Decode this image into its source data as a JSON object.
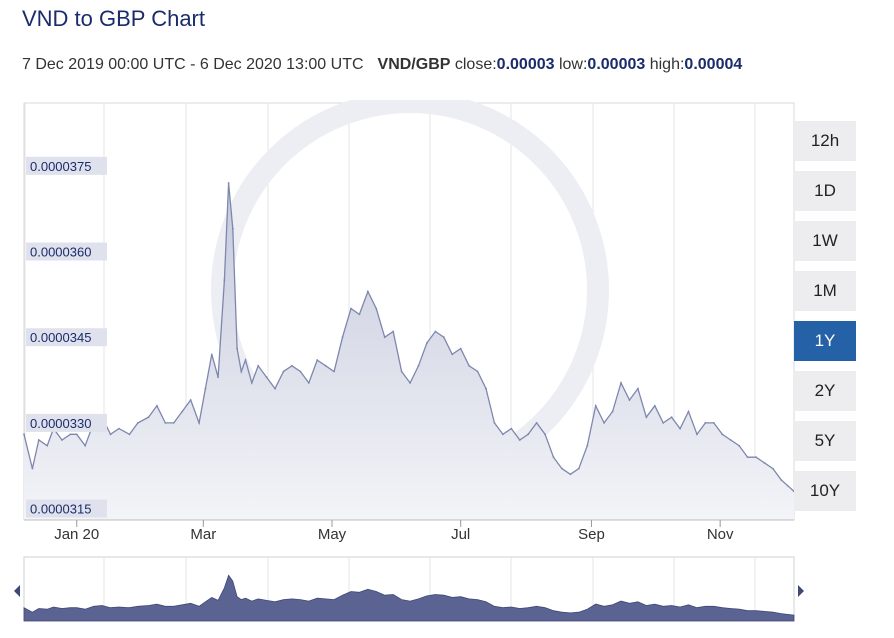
{
  "title": "VND to GBP Chart",
  "subtitle": {
    "range": "7 Dec 2019 00:00 UTC - 6 Dec 2020 13:00 UTC",
    "pair": "VND/GBP",
    "close_label": "close:",
    "close_value": "0.00003",
    "low_label": "low:",
    "low_value": "0.00003",
    "high_label": "high:",
    "high_value": "0.00004"
  },
  "range_buttons": [
    {
      "label": "12h",
      "active": false
    },
    {
      "label": "1D",
      "active": false
    },
    {
      "label": "1W",
      "active": false
    },
    {
      "label": "1M",
      "active": false
    },
    {
      "label": "1Y",
      "active": true
    },
    {
      "label": "2Y",
      "active": false
    },
    {
      "label": "5Y",
      "active": false
    },
    {
      "label": "10Y",
      "active": false
    }
  ],
  "colors": {
    "line": "#7e87ad",
    "fill_top": "#c5c9dc",
    "fill_bottom": "#f3f4f8",
    "label_bg": "#dfe2ec",
    "nav_fill": "#5a6391",
    "active": "#2461a7"
  },
  "chart_data": {
    "type": "area",
    "title": "",
    "xlabel": "",
    "ylabel": "",
    "ylim": [
      3.13e-05,
      3.86e-05
    ],
    "xlim": [
      "2019-12-07",
      "2020-12-06"
    ],
    "y_ticks": [
      "0.0000315",
      "0.0000330",
      "0.0000345",
      "0.0000360",
      "0.0000375"
    ],
    "y_tick_values": [
      3.15e-05,
      3.3e-05,
      3.45e-05,
      3.6e-05,
      3.75e-05
    ],
    "x_ticks": [
      {
        "label": "Jan 20",
        "date": "2020-01-01"
      },
      {
        "label": "Mar",
        "date": "2020-03-01"
      },
      {
        "label": "May",
        "date": "2020-05-01"
      },
      {
        "label": "Jul",
        "date": "2020-07-01"
      },
      {
        "label": "Sep",
        "date": "2020-09-01"
      },
      {
        "label": "Nov",
        "date": "2020-11-01"
      }
    ],
    "grid": true,
    "series": [
      {
        "x": [
          "2019-12-07",
          "2019-12-11",
          "2019-12-14",
          "2019-12-18",
          "2019-12-21",
          "2019-12-25",
          "2019-12-29",
          "2020-01-01",
          "2020-01-05",
          "2020-01-09",
          "2020-01-13",
          "2020-01-17",
          "2020-01-21",
          "2020-01-26",
          "2020-01-30",
          "2020-02-04",
          "2020-02-08",
          "2020-02-12",
          "2020-02-16",
          "2020-02-20",
          "2020-02-24",
          "2020-02-28",
          "2020-03-02",
          "2020-03-05",
          "2020-03-08",
          "2020-03-11",
          "2020-03-13",
          "2020-03-15",
          "2020-03-17",
          "2020-03-19",
          "2020-03-21",
          "2020-03-24",
          "2020-03-27",
          "2020-03-31",
          "2020-04-04",
          "2020-04-08",
          "2020-04-12",
          "2020-04-16",
          "2020-04-20",
          "2020-04-24",
          "2020-04-28",
          "2020-05-02",
          "2020-05-06",
          "2020-05-10",
          "2020-05-14",
          "2020-05-18",
          "2020-05-22",
          "2020-05-26",
          "2020-05-30",
          "2020-06-03",
          "2020-06-07",
          "2020-06-11",
          "2020-06-15",
          "2020-06-19",
          "2020-06-23",
          "2020-06-27",
          "2020-07-01",
          "2020-07-05",
          "2020-07-09",
          "2020-07-13",
          "2020-07-17",
          "2020-07-21",
          "2020-07-25",
          "2020-07-29",
          "2020-08-02",
          "2020-08-06",
          "2020-08-10",
          "2020-08-14",
          "2020-08-18",
          "2020-08-22",
          "2020-08-26",
          "2020-08-30",
          "2020-09-03",
          "2020-09-07",
          "2020-09-11",
          "2020-09-15",
          "2020-09-19",
          "2020-09-23",
          "2020-09-27",
          "2020-10-01",
          "2020-10-05",
          "2020-10-09",
          "2020-10-13",
          "2020-10-17",
          "2020-10-21",
          "2020-10-25",
          "2020-10-29",
          "2020-11-02",
          "2020-11-06",
          "2020-11-10",
          "2020-11-14",
          "2020-11-18",
          "2020-11-22",
          "2020-11-26",
          "2020-11-30",
          "2020-12-03",
          "2020-12-06"
        ],
        "y": [
          3.28e-05,
          3.22e-05,
          3.27e-05,
          3.26e-05,
          3.29e-05,
          3.27e-05,
          3.28e-05,
          3.28e-05,
          3.26e-05,
          3.3e-05,
          3.31e-05,
          3.28e-05,
          3.29e-05,
          3.28e-05,
          3.3e-05,
          3.31e-05,
          3.33e-05,
          3.3e-05,
          3.3e-05,
          3.32e-05,
          3.34e-05,
          3.3e-05,
          3.36e-05,
          3.42e-05,
          3.38e-05,
          3.55e-05,
          3.72e-05,
          3.64e-05,
          3.43e-05,
          3.39e-05,
          3.41e-05,
          3.37e-05,
          3.4e-05,
          3.38e-05,
          3.36e-05,
          3.39e-05,
          3.4e-05,
          3.39e-05,
          3.37e-05,
          3.41e-05,
          3.4e-05,
          3.39e-05,
          3.45e-05,
          3.5e-05,
          3.49e-05,
          3.53e-05,
          3.5e-05,
          3.45e-05,
          3.46e-05,
          3.39e-05,
          3.37e-05,
          3.4e-05,
          3.44e-05,
          3.46e-05,
          3.45e-05,
          3.42e-05,
          3.43e-05,
          3.4e-05,
          3.39e-05,
          3.36e-05,
          3.3e-05,
          3.28e-05,
          3.29e-05,
          3.27e-05,
          3.28e-05,
          3.3e-05,
          3.28e-05,
          3.24e-05,
          3.22e-05,
          3.21e-05,
          3.22e-05,
          3.26e-05,
          3.33e-05,
          3.3e-05,
          3.32e-05,
          3.37e-05,
          3.34e-05,
          3.36e-05,
          3.31e-05,
          3.33e-05,
          3.3e-05,
          3.31e-05,
          3.29e-05,
          3.32e-05,
          3.28e-05,
          3.3e-05,
          3.3e-05,
          3.28e-05,
          3.27e-05,
          3.26e-05,
          3.24e-05,
          3.24e-05,
          3.23e-05,
          3.22e-05,
          3.2e-05,
          3.19e-05,
          3.18e-05
        ]
      }
    ]
  }
}
